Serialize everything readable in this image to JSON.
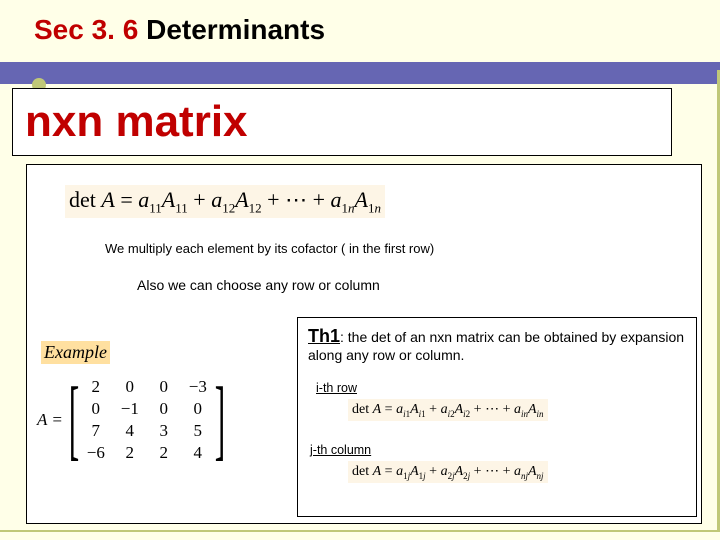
{
  "colors": {
    "slide_bg": "#ffffe8",
    "band": "#6666b3",
    "accent_red": "#c00000",
    "accent_olive": "#c0c878",
    "formula_bg": "#fdf5e6",
    "example_bg": "#ffe0a0"
  },
  "title": {
    "sec": "Sec 3. 6",
    "rest": " Determinants"
  },
  "subtitle": "nxn  matrix",
  "formula_main": "det A = a₁₁A₁₁ + a₁₂A₁₂ + ⋯ + a₁ₙA₁ₙ",
  "note1": "We multiply each element by its cofactor  ( in the first row)",
  "note2": "Also we can choose any  row or column",
  "example_label": "Example",
  "matrix": {
    "lhs": "A =",
    "rows": [
      [
        "2",
        "0",
        "0",
        "−3"
      ],
      [
        "0",
        "−1",
        "0",
        "0"
      ],
      [
        "7",
        "4",
        "3",
        "5"
      ],
      [
        "−6",
        "2",
        "2",
        "4"
      ]
    ]
  },
  "theorem": {
    "label": "Th1",
    "text": ": the det of an nxn matrix can be obtained by expansion along any row or column.",
    "row_label": "i-th row",
    "row_formula": "det A = aᵢ₁Aᵢ₁ + aᵢ₂Aᵢ₂ + ⋯ + aᵢₙAᵢₙ",
    "col_label": "j-th column",
    "col_formula": "det A = a₁ⱼA₁ⱼ + a₂ⱼA₂ⱼ + ⋯ + aₙⱼAₙⱼ"
  }
}
